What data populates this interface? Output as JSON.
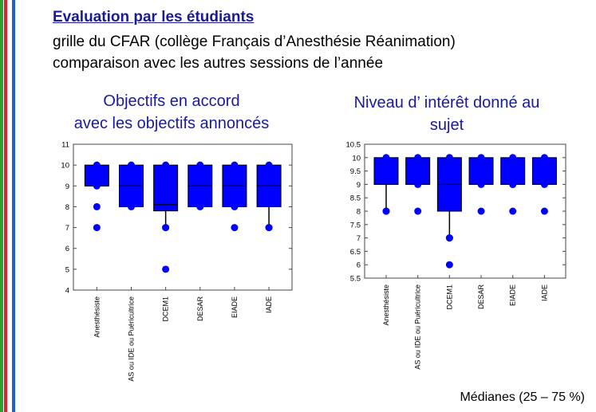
{
  "slide": {
    "heading": "Evaluation par les étudiants",
    "lines": [
      "grille du CFAR (collège Français d’Anesthésie Réanimation)",
      "comparaison avec les autres sessions de l’année"
    ],
    "footnote": "Médianes (25 – 75 %)",
    "stripe_colors": [
      "#2ca02c",
      "#d62728",
      "#ffffff",
      "#1f5fd6"
    ]
  },
  "chart_data": [
    {
      "type": "boxplot",
      "title_lines": [
        "Objectifs en accord",
        "avec les objectifs annoncés"
      ],
      "color": "#0000ff",
      "categories": [
        "Anesthésiste",
        "AS ou IDE ou Puéricultrice",
        "DCEM1",
        "DESAR",
        "EIADE",
        "IADE"
      ],
      "ylim": [
        4,
        11
      ],
      "yticks": [
        "4",
        "5",
        "6",
        "7",
        "8",
        "9",
        "10",
        "11"
      ],
      "boxes": [
        {
          "whisker_low": 9,
          "q1": 9,
          "median": 9,
          "q3": 10,
          "whisker_high": 10,
          "outliers": [
            8,
            7
          ]
        },
        {
          "whisker_low": 8,
          "q1": 8,
          "median": 9,
          "q3": 10,
          "whisker_high": 10,
          "outliers": []
        },
        {
          "whisker_low": 7,
          "q1": 7.8,
          "median": 8.1,
          "q3": 10,
          "whisker_high": 10,
          "outliers": [
            7,
            5
          ]
        },
        {
          "whisker_low": 8,
          "q1": 8,
          "median": 9,
          "q3": 10,
          "whisker_high": 10,
          "outliers": []
        },
        {
          "whisker_low": 8,
          "q1": 8,
          "median": 9,
          "q3": 10,
          "whisker_high": 10,
          "outliers": [
            7
          ]
        },
        {
          "whisker_low": 7,
          "q1": 8,
          "median": 9,
          "q3": 10,
          "whisker_high": 10,
          "outliers": [
            7
          ]
        }
      ]
    },
    {
      "type": "boxplot",
      "title_lines": [
        "Niveau d’ intérêt donné au",
        "sujet"
      ],
      "color": "#0000ff",
      "categories": [
        "Anesthésiste",
        "AS ou IDE ou Puéricultrice",
        "DCEM1",
        "DESAR",
        "EIADE",
        "IADE"
      ],
      "ylim": [
        5.5,
        10.5
      ],
      "yticks": [
        "5.5",
        "6",
        "6.5",
        "7",
        "7.5",
        "8",
        "8.5",
        "9",
        "9.5",
        "10",
        "10.5"
      ],
      "boxes": [
        {
          "whisker_low": 8,
          "q1": 9,
          "median": 9,
          "q3": 10,
          "whisker_high": 10,
          "outliers": [
            8
          ]
        },
        {
          "whisker_low": 9,
          "q1": 9,
          "median": 9,
          "q3": 10,
          "whisker_high": 10,
          "outliers": [
            8
          ]
        },
        {
          "whisker_low": 7,
          "q1": 8,
          "median": 9,
          "q3": 10,
          "whisker_high": 10,
          "outliers": [
            7,
            6
          ]
        },
        {
          "whisker_low": 9,
          "q1": 9,
          "median": 9,
          "q3": 10,
          "whisker_high": 10,
          "outliers": [
            8
          ]
        },
        {
          "whisker_low": 9,
          "q1": 9,
          "median": 9,
          "q3": 10,
          "whisker_high": 10,
          "outliers": [
            9,
            8
          ]
        },
        {
          "whisker_low": 9,
          "q1": 9,
          "median": 9,
          "q3": 10,
          "whisker_high": 10,
          "outliers": [
            8
          ]
        }
      ]
    }
  ]
}
